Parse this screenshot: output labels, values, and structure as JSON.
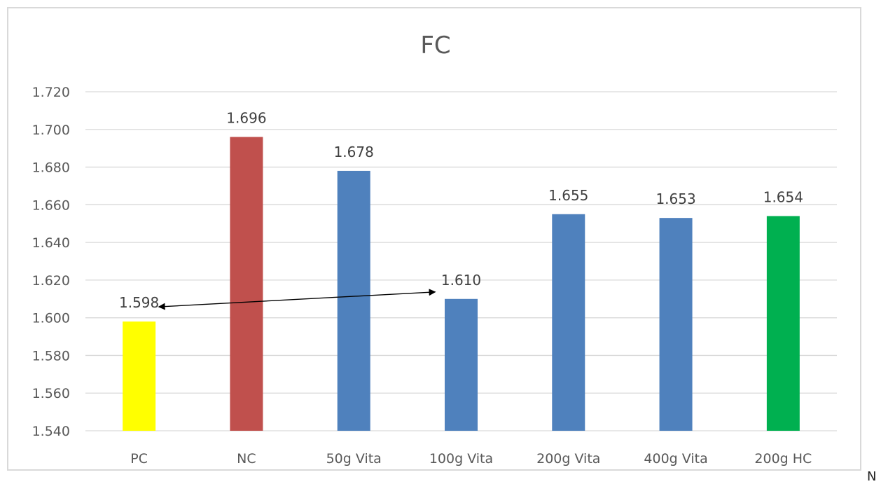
{
  "chart_data": {
    "type": "bar",
    "title": "FC",
    "categories": [
      "PC",
      "NC",
      "50g Vita",
      "100g Vita",
      "200g Vita",
      "400g Vita",
      "200g HC"
    ],
    "values": [
      1.598,
      1.696,
      1.678,
      1.61,
      1.655,
      1.653,
      1.654
    ],
    "value_labels": [
      "1.598",
      "1.696",
      "1.678",
      "1.610",
      "1.655",
      "1.653",
      "1.654"
    ],
    "bar_colors": [
      "#ffff00",
      "#c0504d",
      "#4f81bd",
      "#4f81bd",
      "#4f81bd",
      "#4f81bd",
      "#00b050"
    ],
    "ylim": [
      1.54,
      1.72
    ],
    "yticks": [
      "1.540",
      "1.560",
      "1.580",
      "1.600",
      "1.620",
      "1.640",
      "1.660",
      "1.680",
      "1.700",
      "1.720"
    ],
    "xlabel": "",
    "ylabel": "",
    "grid": true,
    "legend": "none",
    "annotation": {
      "type": "double-arrow",
      "from_category": "PC",
      "to_category": "100g Vita"
    }
  },
  "stray_text": "N"
}
